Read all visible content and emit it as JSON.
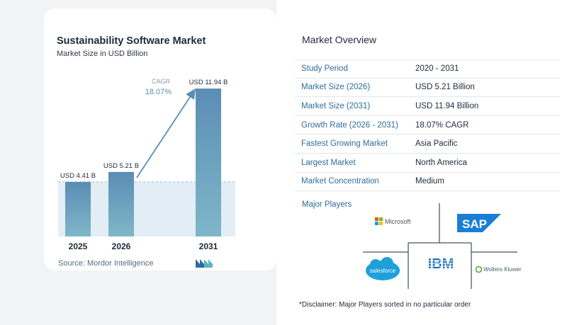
{
  "chart_data": {
    "type": "bar",
    "title": "Sustainability Software Market",
    "subtitle": "Market Size in USD Billion",
    "categories": [
      "2025",
      "2026",
      "2031"
    ],
    "values": [
      4.41,
      5.21,
      11.94
    ],
    "data_labels": [
      "USD 4.41 B",
      "USD 5.21 B",
      "USD 11.94 B"
    ],
    "cagr_label": "CAGR",
    "cagr_value": "18.07%",
    "ylim": [
      0,
      12
    ]
  },
  "source": "Source: Mordor Intelligence",
  "overview": {
    "title": "Market Overview",
    "rows": [
      {
        "key": "Study Period",
        "value": "2020 - 2031"
      },
      {
        "key": "Market Size (2026)",
        "value": "USD 5.21 Billion"
      },
      {
        "key": "Market Size (2031)",
        "value": "USD 11.94 Billion"
      },
      {
        "key": "Growth Rate (2026 - 2031)",
        "value": "18.07% CAGR"
      },
      {
        "key": "Fastest Growing Market",
        "value": "Asia Pacific"
      },
      {
        "key": "Largest Market",
        "value": "North America"
      },
      {
        "key": "Market Concentration",
        "value": "Medium"
      }
    ]
  },
  "players": {
    "title": "Major Players",
    "microsoft": "Microsoft",
    "sap": "SAP",
    "salesforce": "salesforce",
    "ibm": "IBM",
    "wolters": "Wolters Kluwer"
  },
  "disclaimer": "*Disclaimer: Major Players sorted in no particular order",
  "colors": {
    "bar_top": "#5b8db5",
    "bar_bottom": "#7fb7c9",
    "accent": "#2f6d9c",
    "arrow": "#5b8db5"
  }
}
